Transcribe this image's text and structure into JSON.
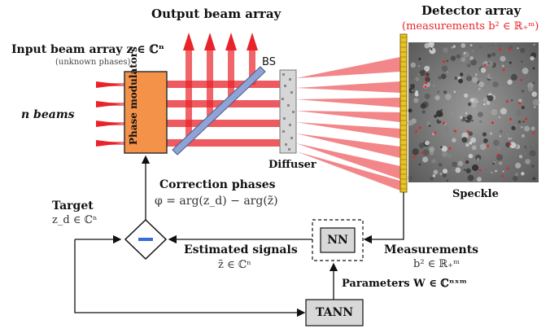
{
  "labels": {
    "output_beam_array": "Output beam array",
    "detector_array": "Detector array",
    "measurements_note": "(measurements b² ∈ ℝ₊ᵐ)",
    "input_beam_array": "Input beam array  z ∈ ℂⁿ",
    "unknown_phases": "(unknown phases)",
    "n_beams": "n beams",
    "phase_modulators": "Phase modulators",
    "bs": "BS",
    "diffuser": "Diffuser",
    "speckle": "Speckle",
    "correction_phases": "Correction phases",
    "correction_formula": "φ = arg(z_d) − arg(z̃)",
    "target": "Target",
    "target_value": "z_d ∈ ℂⁿ",
    "estimated_signals": "Estimated signals",
    "estimated_value": "z̃ ∈ ℂⁿ",
    "nn": "NN",
    "measurements": "Measurements",
    "measurements_value": "b² ∈ ℝ₊ᵐ",
    "parameters": "Parameters  W ∈ ℂⁿˣᵐ",
    "tann": "TANN"
  },
  "colors": {
    "beam_red": "#e8242a",
    "modulator_orange": "#f5924a",
    "splitter_blue": "#8fa3d6",
    "detector_yellow": "#e9c229",
    "box_gray": "#d8d8d8"
  }
}
